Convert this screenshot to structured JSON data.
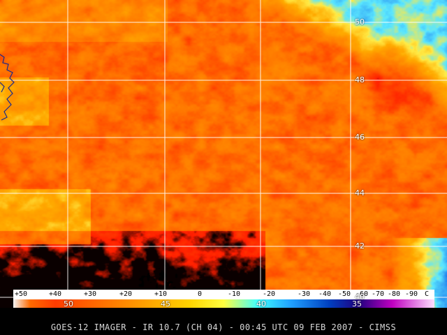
{
  "caption": "GOES-12 IMAGER - IR 10.7 (CH 04) - 00:45 UTC 09 FEB 2007 - CIMSS",
  "latitude_labels": [
    "50",
    "48",
    "46",
    "44",
    "42",
    "40"
  ],
  "longitude_labels": [
    "50",
    "45",
    "40",
    "35"
  ],
  "temperature_scale": {
    "labels": [
      "+50",
      "+40",
      "+30",
      "+20",
      "+10",
      "0",
      "-10",
      "-20",
      "-30",
      "-40",
      "-50",
      "-60",
      "-70",
      "-80",
      "-90",
      "C"
    ],
    "colors": [
      "#ffffff",
      "#ff0000",
      "#ff8000",
      "#ffff00",
      "#00ffff",
      "#0080ff",
      "#0000a0",
      "#ff00ff"
    ]
  },
  "palette": {
    "orange": "#ff9a00",
    "red": "#ff3300",
    "yellow": "#ffe640",
    "cyan": "#3fe0ff",
    "blue": "#1050d0",
    "black": "#000000"
  }
}
